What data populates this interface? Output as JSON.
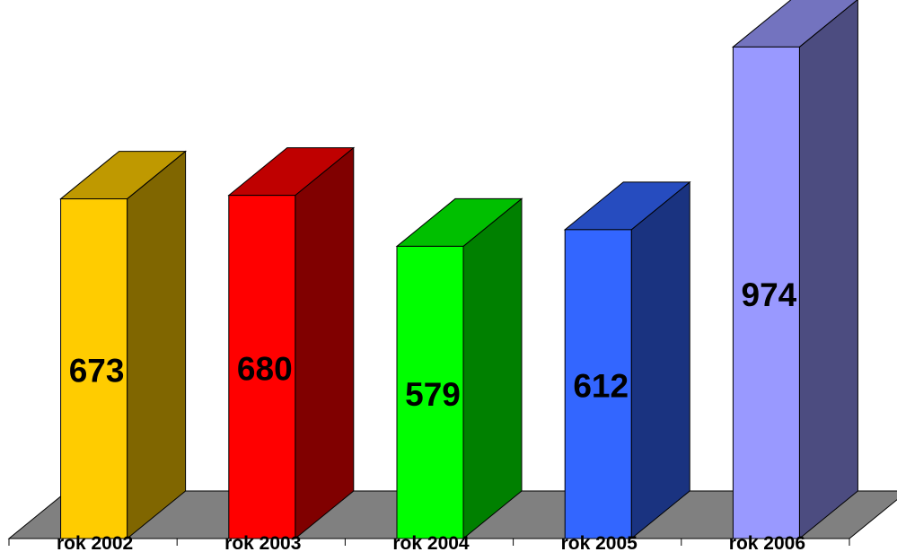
{
  "chart_data": {
    "type": "bar",
    "categories": [
      "rok 2002",
      "rok 2003",
      "rok 2004",
      "rok 2005",
      "rok 2006"
    ],
    "values": [
      673,
      680,
      579,
      612,
      974
    ],
    "title": "",
    "xlabel": "",
    "ylabel": "",
    "ylim": [
      0,
      1000
    ],
    "grid": false,
    "legend": "none",
    "three_d": true,
    "colors": [
      {
        "front": "#FFCC00",
        "top": "#BF9900",
        "side": "#806600"
      },
      {
        "front": "#FF0000",
        "top": "#BF0000",
        "side": "#800000"
      },
      {
        "front": "#00FF00",
        "top": "#00BF00",
        "side": "#008000"
      },
      {
        "front": "#3366FF",
        "top": "#264CBF",
        "side": "#1A3380"
      },
      {
        "front": "#9999FF",
        "top": "#7373BF",
        "side": "#4C4C80"
      }
    ],
    "floor_color": "#808080"
  }
}
